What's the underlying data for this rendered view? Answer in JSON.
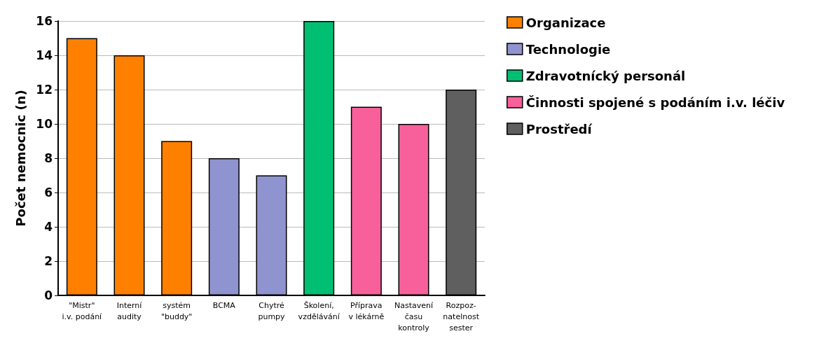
{
  "chart_data": {
    "type": "bar",
    "ylabel": "Počet nemocnic (n)",
    "categories": [
      "\"Mistr\"\ni.v. podání",
      "Interní\naudity",
      "systém\n\"buddy\"",
      "BCMA",
      "Chytré\npumpy",
      "Školení,\nvzdělávání",
      "Příprava\nv lékárně",
      "Nastavení\nčasu\nkontroly",
      "Rozpoz-\nnatelnost\nsester"
    ],
    "series": [
      {
        "name": "Organizace",
        "color": "#ff8000",
        "values": [
          15,
          14,
          9,
          null,
          null,
          null,
          null,
          null,
          null
        ]
      },
      {
        "name": "Technologie",
        "color": "#8f93cf",
        "values": [
          null,
          null,
          null,
          8,
          7,
          null,
          null,
          null,
          null
        ]
      },
      {
        "name": "Zdravotnícký personál",
        "color": "#00bf73",
        "values": [
          null,
          null,
          null,
          null,
          null,
          16,
          null,
          null,
          null
        ]
      },
      {
        "name": "Činnosti spojené s podáním i.v. léčiv",
        "color": "#f7609a",
        "values": [
          null,
          null,
          null,
          null,
          null,
          null,
          11,
          10,
          null
        ]
      },
      {
        "name": "Prostředí",
        "color": "#5f5f5f",
        "values": [
          null,
          null,
          null,
          null,
          null,
          null,
          null,
          null,
          12
        ]
      }
    ],
    "ylim": [
      0,
      16
    ],
    "yticks": [
      0,
      2,
      4,
      6,
      8,
      10,
      12,
      14,
      16
    ],
    "grid": "y",
    "legend": "right",
    "stacked": true
  }
}
